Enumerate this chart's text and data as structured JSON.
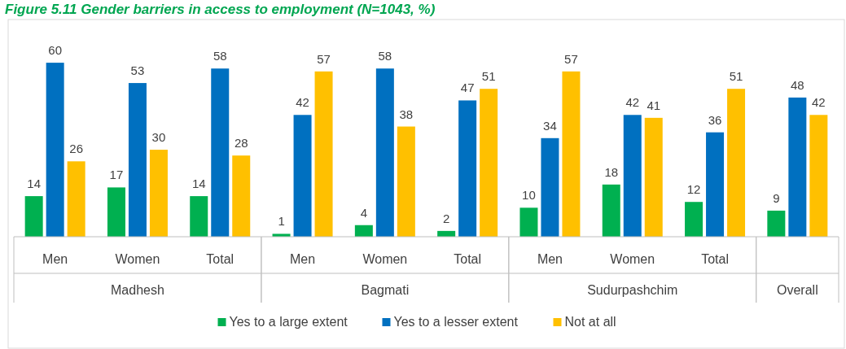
{
  "chart_data": {
    "type": "bar",
    "title": "Figure 5.11 Gender barriers in access to employment (N=1043, %)",
    "categories": [
      "Men",
      "Women",
      "Total",
      "Men",
      "Women",
      "Total",
      "Men",
      "Women",
      "Total",
      null
    ],
    "series": [
      {
        "name": "Yes to a large extent",
        "color": "#00b050",
        "values": [
          14,
          17,
          14,
          1,
          4,
          2,
          10,
          18,
          12,
          9
        ]
      },
      {
        "name": "Yes to a lesser extent",
        "color": "#0070c0",
        "values": [
          60,
          53,
          58,
          42,
          58,
          47,
          34,
          42,
          36,
          48
        ]
      },
      {
        "name": "Not at all",
        "color": "#ffc000",
        "values": [
          26,
          30,
          28,
          57,
          38,
          51,
          57,
          41,
          51,
          42
        ]
      }
    ],
    "annotations": [
      "Madhesh",
      "Bagmati",
      "Sudurpashchim",
      "Overall"
    ],
    "data_labels": true,
    "legend": "bottom"
  }
}
